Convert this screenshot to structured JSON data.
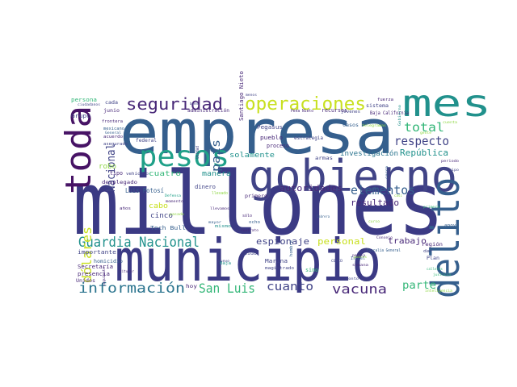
{
  "palette": {
    "navy": "#3b3a84",
    "indigo": "#414487",
    "slate": "#355f8d",
    "steel": "#2b748e",
    "teal": "#21918c",
    "aqua": "#1fa088",
    "green": "#35b779",
    "lime": "#8fd744",
    "yellow": "#c8e020",
    "purple": "#482878",
    "plum": "#471365"
  },
  "words": [
    {
      "text": "millones",
      "size": 108,
      "color": "navy"
    },
    {
      "text": "empresa",
      "size": 76,
      "color": "slate"
    },
    {
      "text": "municipio",
      "size": 72,
      "color": "navy"
    },
    {
      "text": "gobierno",
      "size": 54,
      "color": "indigo"
    },
    {
      "text": "mes",
      "size": 46,
      "color": "teal"
    },
    {
      "text": "toda",
      "size": 44,
      "color": "plum"
    },
    {
      "text": "delito",
      "size": 48,
      "color": "slate"
    },
    {
      "text": "pesos",
      "size": 36,
      "color": "aqua"
    },
    {
      "text": "operaciones",
      "size": 22,
      "color": "yellow"
    },
    {
      "text": "seguridad",
      "size": 20,
      "color": "purple"
    },
    {
      "text": "Guardia Nacional",
      "size": 17,
      "color": "teal"
    },
    {
      "text": "información",
      "size": 17,
      "color": "steel"
    },
    {
      "text": "San Luis",
      "size": 16,
      "color": "green"
    },
    {
      "text": "cuanto",
      "size": 14,
      "color": "indigo"
    },
    {
      "text": "vacuna",
      "size": 16,
      "color": "purple"
    },
    {
      "text": "dólares",
      "size": 16,
      "color": "yellow"
    },
    {
      "text": "total",
      "size": 15,
      "color": "green"
    },
    {
      "text": "respecto",
      "size": 15,
      "color": "indigo"
    },
    {
      "text": "elementos",
      "size": 15,
      "color": "slate"
    },
    {
      "text": "Nacional",
      "size": 14,
      "color": "indigo"
    },
    {
      "text": "país",
      "size": 14,
      "color": "slate"
    },
    {
      "text": "parte",
      "size": 13,
      "color": "green"
    },
    {
      "text": "República",
      "size": 11,
      "color": "teal"
    },
    {
      "text": "resultado",
      "size": 11,
      "color": "purple"
    },
    {
      "text": "personal",
      "size": 11,
      "color": "yellow"
    },
    {
      "text": "espionaje",
      "size": 11,
      "color": "indigo"
    },
    {
      "text": "autoridades",
      "size": 11,
      "color": "purple"
    },
    {
      "text": "trabajo",
      "size": 10,
      "color": "purple"
    },
    {
      "text": "solamente",
      "size": 9,
      "color": "teal"
    },
    {
      "text": "investigación",
      "size": 9,
      "color": "steel"
    },
    {
      "text": "cuatro",
      "size": 9,
      "color": "green"
    },
    {
      "text": "robo",
      "size": 9,
      "color": "lime"
    },
    {
      "text": "manera",
      "size": 9,
      "color": "teal"
    },
    {
      "text": "cinco",
      "size": 9,
      "color": "indigo"
    },
    {
      "text": "cabo",
      "size": 9,
      "color": "yellow"
    },
    {
      "text": "Luis Potosí",
      "size": 8,
      "color": "slate"
    },
    {
      "text": "Tech Bull",
      "size": 7,
      "color": "slate"
    },
    {
      "text": "Santiago Nieto",
      "size": 7,
      "color": "purple"
    },
    {
      "text": "Pegasus",
      "size": 7,
      "color": "indigo"
    },
    {
      "text": "pueblo",
      "size": 7,
      "color": "purple"
    },
    {
      "text": "proceso",
      "size": 7,
      "color": "purple"
    },
    {
      "text": "estrategia",
      "size": 6,
      "color": "indigo"
    },
    {
      "text": "administración",
      "size": 6,
      "color": "purple"
    },
    {
      "text": "recursos",
      "size": 7,
      "color": "purple"
    },
    {
      "text": "sistema",
      "size": 6,
      "color": "indigo"
    },
    {
      "text": "casos",
      "size": 6,
      "color": "slate"
    },
    {
      "text": "Baja California",
      "size": 6,
      "color": "purple"
    },
    {
      "text": "Grupo",
      "size": 7,
      "color": "indigo"
    },
    {
      "text": "persona",
      "size": 7,
      "color": "green"
    },
    {
      "text": "federal",
      "size": 6,
      "color": "indigo"
    },
    {
      "text": "junio",
      "size": 6,
      "color": "purple"
    },
    {
      "text": "Secretaría",
      "size": 7,
      "color": "purple"
    },
    {
      "text": "importante",
      "size": 7,
      "color": "indigo"
    },
    {
      "text": "homicidio",
      "size": 6,
      "color": "slate"
    },
    {
      "text": "presencia",
      "size": 7,
      "color": "purple"
    },
    {
      "text": "Marina",
      "size": 7,
      "color": "indigo"
    },
    {
      "text": "Fiscalía General",
      "size": 5,
      "color": "slate"
    },
    {
      "text": "región",
      "size": 6,
      "color": "purple"
    },
    {
      "text": "fuerza",
      "size": 5,
      "color": "purple"
    },
    {
      "text": "aduanas",
      "size": 5,
      "color": "indigo"
    },
    {
      "text": "armas",
      "size": 6,
      "color": "indigo"
    },
    {
      "text": "dinero",
      "size": 7,
      "color": "indigo"
    },
    {
      "text": "primero",
      "size": 6,
      "color": "purple"
    },
    {
      "text": "hombre",
      "size": 5,
      "color": "slate"
    },
    {
      "text": "sido",
      "size": 6,
      "color": "indigo"
    },
    {
      "text": "magistrado",
      "size": 5,
      "color": "indigo"
    },
    {
      "text": "sino",
      "size": 7,
      "color": "green"
    },
    {
      "text": "hoy",
      "size": 6,
      "color": "purple"
    },
    {
      "text": "Plan",
      "size": 6,
      "color": "indigo"
    },
    {
      "text": "dar",
      "size": 5,
      "color": "indigo"
    },
    {
      "text": "Unidos",
      "size": 6,
      "color": "purple"
    },
    {
      "text": "tipo",
      "size": 7,
      "color": "purple"
    },
    {
      "text": "vehículo",
      "size": 5,
      "color": "indigo"
    },
    {
      "text": "desplegado",
      "size": 6,
      "color": "purple"
    },
    {
      "text": "jóvenes",
      "size": 5,
      "color": "indigo"
    },
    {
      "text": "Peña Nieto",
      "size": 5,
      "color": "purple"
    },
    {
      "text": "cada",
      "size": 6,
      "color": "indigo"
    },
    {
      "text": "frontera",
      "size": 5,
      "color": "purple"
    },
    {
      "text": "mexicano",
      "size": 5,
      "color": "slate"
    },
    {
      "text": "acuerdo",
      "size": 5,
      "color": "purple"
    },
    {
      "text": "asegurado",
      "size": 5,
      "color": "indigo"
    },
    {
      "text": "ciudadanos",
      "size": 4,
      "color": "indigo"
    },
    {
      "text": "semana",
      "size": 4,
      "color": "purple"
    },
    {
      "text": "COVID",
      "size": 4,
      "color": "indigo"
    },
    {
      "text": "Israel",
      "size": 5,
      "color": "slate"
    },
    {
      "text": "Baja",
      "size": 5,
      "color": "teal"
    },
    {
      "text": "sólo",
      "size": 5,
      "color": "purple"
    },
    {
      "text": "ocho",
      "size": 5,
      "color": "slate"
    },
    {
      "text": "mismo",
      "size": 5,
      "color": "teal"
    },
    {
      "text": "llevamos",
      "size": 4,
      "color": "purple"
    },
    {
      "text": "años",
      "size": 5,
      "color": "purple"
    },
    {
      "text": "llevado",
      "size": 5,
      "color": "lime"
    },
    {
      "text": "Cabrera",
      "size": 4,
      "color": "slate"
    },
    {
      "text": "Consejo",
      "size": 4,
      "color": "purple"
    },
    {
      "text": "curso",
      "size": 4,
      "color": "lime"
    },
    {
      "text": "apoyo",
      "size": 5,
      "color": "slate"
    },
    {
      "text": "equipo",
      "size": 4,
      "color": "indigo"
    },
    {
      "text": "periodo",
      "size": 4,
      "color": "purple"
    },
    {
      "text": "primera",
      "size": 4,
      "color": "green"
    },
    {
      "text": "justicia",
      "size": 4,
      "color": "green"
    },
    {
      "text": "inteligencia",
      "size": 4,
      "color": "lime"
    },
    {
      "text": "cuenta",
      "size": 4,
      "color": "lime"
    },
    {
      "text": "titular",
      "size": 4,
      "color": "purple"
    },
    {
      "text": "siguiente",
      "size": 4,
      "color": "purple"
    },
    {
      "text": "telegramas",
      "size": 4,
      "color": "lime"
    },
    {
      "text": "bien",
      "size": 4,
      "color": "indigo"
    },
    {
      "text": "Nuevo",
      "size": 4,
      "color": "indigo"
    },
    {
      "text": "contrato",
      "size": 4,
      "color": "purple"
    },
    {
      "text": "mayor",
      "size": 4,
      "color": "slate"
    },
    {
      "text": "Unidad",
      "size": 5,
      "color": "indigo"
    },
    {
      "text": "Defensa",
      "size": 4,
      "color": "aqua"
    },
    {
      "text": "momento",
      "size": 4,
      "color": "purple"
    },
    {
      "text": "pasado",
      "size": 4,
      "color": "lime"
    },
    {
      "text": "General",
      "size": 4,
      "color": "slate"
    },
    {
      "text": "pobres",
      "size": 4,
      "color": "lime"
    },
    {
      "text": "monto",
      "size": 4,
      "color": "indigo"
    },
    {
      "text": "menos",
      "size": 4,
      "color": "indigo"
    },
    {
      "text": "gente",
      "size": 4,
      "color": "lime"
    },
    {
      "text": "cerca",
      "size": 4,
      "color": "slate"
    },
    {
      "text": "casi",
      "size": 4,
      "color": "lime"
    },
    {
      "text": "podría",
      "size": 4,
      "color": "purple"
    },
    {
      "text": "calleros",
      "size": 4,
      "color": "green"
    },
    {
      "text": "Gobierno",
      "size": 4,
      "color": "teal"
    }
  ]
}
